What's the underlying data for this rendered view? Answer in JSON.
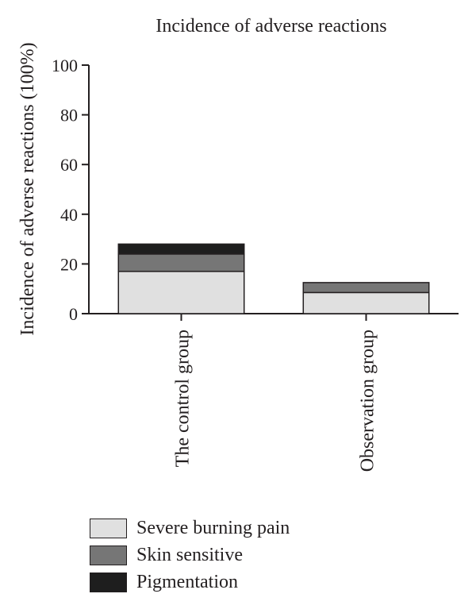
{
  "chart_data": {
    "type": "bar",
    "stacked": true,
    "title": "Incidence of adverse reactions",
    "xlabel": "",
    "ylabel": "Incidence of adverse reactions (100%)",
    "ylim": [
      0,
      100
    ],
    "yticks": [
      0,
      20,
      40,
      60,
      80,
      100
    ],
    "categories": [
      "The control group",
      "Observation group"
    ],
    "series": [
      {
        "name": "Severe burning pain",
        "values": [
          17,
          8.5
        ],
        "color": "#e0e0e0"
      },
      {
        "name": "Skin sensitive",
        "values": [
          7,
          4
        ],
        "color": "#767676"
      },
      {
        "name": "Pigmentation",
        "values": [
          4,
          0
        ],
        "color": "#1e1e1e"
      }
    ],
    "legend_position": "bottom-left",
    "grid": false
  }
}
